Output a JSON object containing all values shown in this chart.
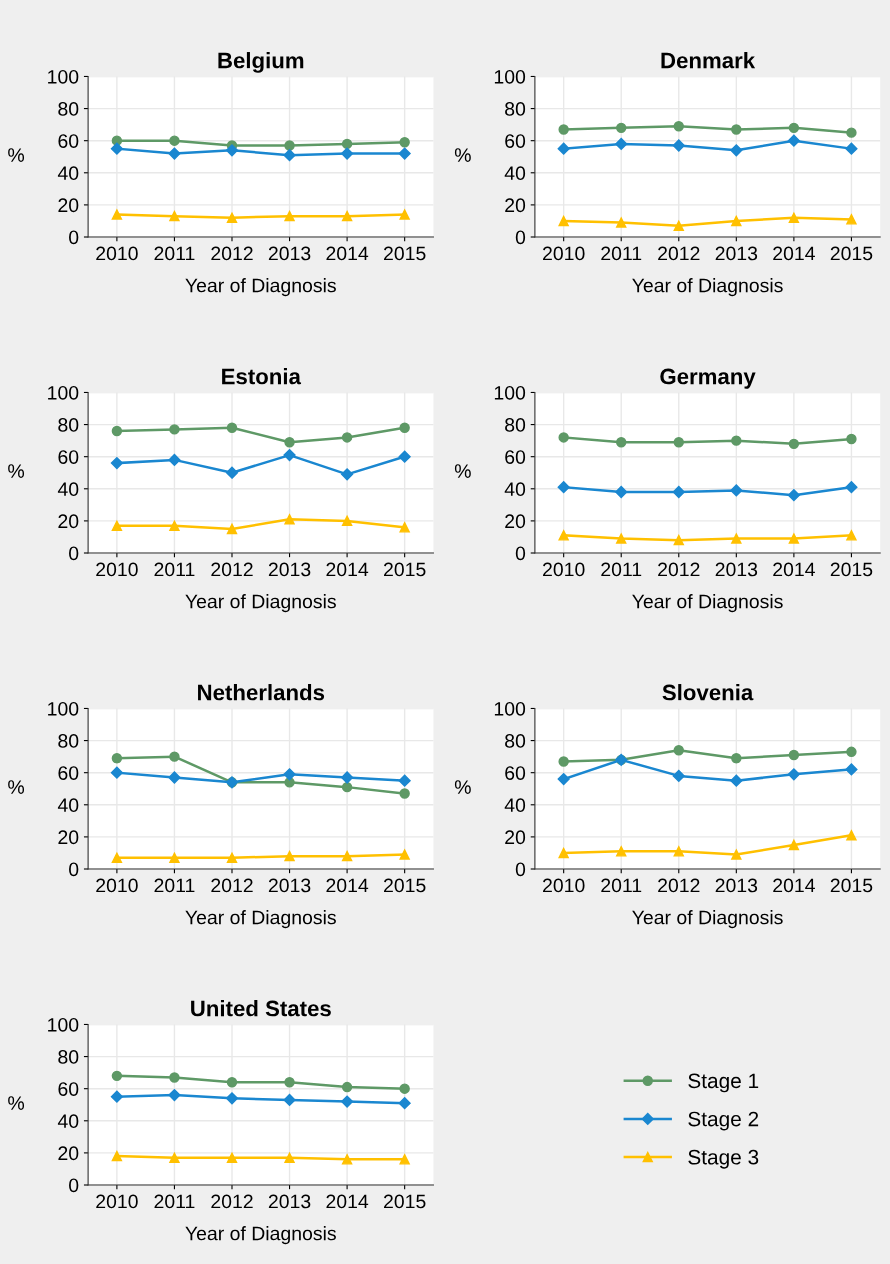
{
  "chart_data": [
    {
      "type": "line",
      "title": "Belgium",
      "xlabel": "Year of Diagnosis",
      "ylabel": "%",
      "categories": [
        "2010",
        "2011",
        "2012",
        "2013",
        "2014",
        "2015"
      ],
      "ylim": [
        0,
        100
      ],
      "yticks": [
        0,
        20,
        40,
        60,
        80,
        100
      ],
      "grid": true,
      "legend": false,
      "series": [
        {
          "color": "#5e9966",
          "marker": "circle",
          "values": [
            60,
            60,
            57,
            57,
            58,
            59
          ]
        },
        {
          "color": "#1a87d0",
          "marker": "diamond",
          "values": [
            55,
            52,
            54,
            51,
            52,
            52
          ]
        },
        {
          "color": "#ffc000",
          "marker": "triangle",
          "values": [
            14,
            13,
            12,
            13,
            13,
            14
          ]
        }
      ]
    },
    {
      "type": "line",
      "title": "Denmark",
      "xlabel": "Year of Diagnosis",
      "ylabel": "%",
      "categories": [
        "2010",
        "2011",
        "2012",
        "2013",
        "2014",
        "2015"
      ],
      "ylim": [
        0,
        100
      ],
      "yticks": [
        0,
        20,
        40,
        60,
        80,
        100
      ],
      "grid": true,
      "legend": false,
      "series": [
        {
          "color": "#5e9966",
          "marker": "circle",
          "values": [
            67,
            68,
            69,
            67,
            68,
            65
          ]
        },
        {
          "color": "#1a87d0",
          "marker": "diamond",
          "values": [
            55,
            58,
            57,
            54,
            60,
            55
          ]
        },
        {
          "color": "#ffc000",
          "marker": "triangle",
          "values": [
            10,
            9,
            7,
            10,
            12,
            11
          ]
        }
      ]
    },
    {
      "type": "line",
      "title": "Estonia",
      "xlabel": "Year of Diagnosis",
      "ylabel": "%",
      "categories": [
        "2010",
        "2011",
        "2012",
        "2013",
        "2014",
        "2015"
      ],
      "ylim": [
        0,
        100
      ],
      "yticks": [
        0,
        20,
        40,
        60,
        80,
        100
      ],
      "grid": true,
      "legend": false,
      "series": [
        {
          "color": "#5e9966",
          "marker": "circle",
          "values": [
            76,
            77,
            78,
            69,
            72,
            78
          ]
        },
        {
          "color": "#1a87d0",
          "marker": "diamond",
          "values": [
            56,
            58,
            50,
            61,
            49,
            60
          ]
        },
        {
          "color": "#ffc000",
          "marker": "triangle",
          "values": [
            17,
            17,
            15,
            21,
            20,
            16
          ]
        }
      ]
    },
    {
      "type": "line",
      "title": "Germany",
      "xlabel": "Year of Diagnosis",
      "ylabel": "%",
      "categories": [
        "2010",
        "2011",
        "2012",
        "2013",
        "2014",
        "2015"
      ],
      "ylim": [
        0,
        100
      ],
      "yticks": [
        0,
        20,
        40,
        60,
        80,
        100
      ],
      "grid": true,
      "legend": false,
      "series": [
        {
          "color": "#5e9966",
          "marker": "circle",
          "values": [
            72,
            69,
            69,
            70,
            68,
            71
          ]
        },
        {
          "color": "#1a87d0",
          "marker": "diamond",
          "values": [
            41,
            38,
            38,
            39,
            36,
            41
          ]
        },
        {
          "color": "#ffc000",
          "marker": "triangle",
          "values": [
            11,
            9,
            8,
            9,
            9,
            11
          ]
        }
      ]
    },
    {
      "type": "line",
      "title": "Netherlands",
      "xlabel": "Year of Diagnosis",
      "ylabel": "%",
      "categories": [
        "2010",
        "2011",
        "2012",
        "2013",
        "2014",
        "2015"
      ],
      "ylim": [
        0,
        100
      ],
      "yticks": [
        0,
        20,
        40,
        60,
        80,
        100
      ],
      "grid": true,
      "legend": false,
      "series": [
        {
          "color": "#5e9966",
          "marker": "circle",
          "values": [
            69,
            70,
            54,
            54,
            51,
            47
          ]
        },
        {
          "color": "#1a87d0",
          "marker": "diamond",
          "values": [
            60,
            57,
            54,
            59,
            57,
            55
          ]
        },
        {
          "color": "#ffc000",
          "marker": "triangle",
          "values": [
            7,
            7,
            7,
            8,
            8,
            9
          ]
        }
      ]
    },
    {
      "type": "line",
      "title": "Slovenia",
      "xlabel": "Year of Diagnosis",
      "ylabel": "%",
      "categories": [
        "2010",
        "2011",
        "2012",
        "2013",
        "2014",
        "2015"
      ],
      "ylim": [
        0,
        100
      ],
      "yticks": [
        0,
        20,
        40,
        60,
        80,
        100
      ],
      "grid": true,
      "legend": false,
      "series": [
        {
          "color": "#5e9966",
          "marker": "circle",
          "values": [
            67,
            68,
            74,
            69,
            71,
            73
          ]
        },
        {
          "color": "#1a87d0",
          "marker": "diamond",
          "values": [
            56,
            68,
            58,
            55,
            59,
            62
          ]
        },
        {
          "color": "#ffc000",
          "marker": "triangle",
          "values": [
            10,
            11,
            11,
            9,
            15,
            21
          ]
        }
      ]
    },
    {
      "type": "line",
      "title": "United States",
      "xlabel": "Year of Diagnosis",
      "ylabel": "%",
      "categories": [
        "2010",
        "2011",
        "2012",
        "2013",
        "2014",
        "2015"
      ],
      "ylim": [
        0,
        100
      ],
      "yticks": [
        0,
        20,
        40,
        60,
        80,
        100
      ],
      "grid": true,
      "legend": "right",
      "series": [
        {
          "name": "Stage 1",
          "color": "#5e9966",
          "marker": "circle",
          "values": [
            68,
            67,
            64,
            64,
            61,
            60
          ]
        },
        {
          "name": "Stage 2",
          "color": "#1a87d0",
          "marker": "diamond",
          "values": [
            55,
            56,
            54,
            53,
            52,
            51
          ]
        },
        {
          "name": "Stage 3",
          "color": "#ffc000",
          "marker": "triangle",
          "values": [
            18,
            17,
            17,
            17,
            16,
            16
          ]
        }
      ]
    }
  ]
}
